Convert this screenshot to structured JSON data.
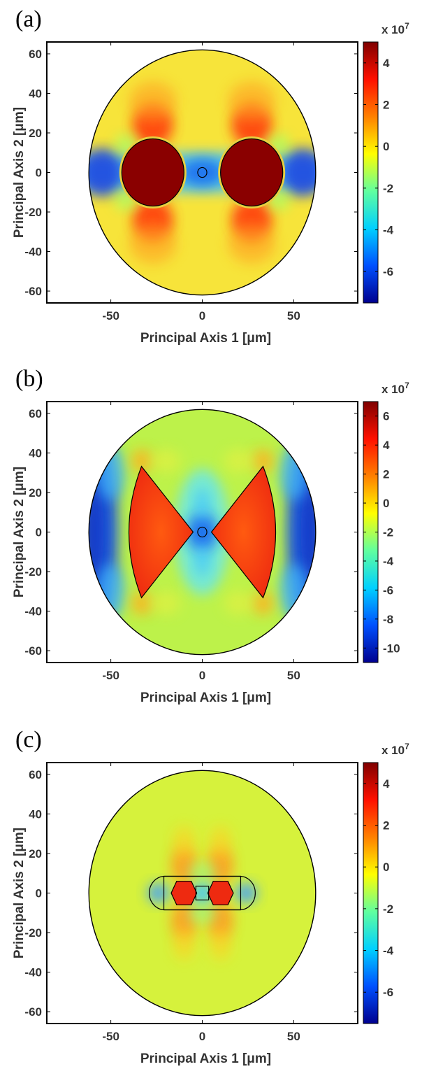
{
  "chart_data": [
    {
      "type": "heatmap",
      "panel_label": "(a)",
      "xlabel": "Principal Axis 1 [μm]",
      "ylabel": "Principal Axis 2 [μm]",
      "xticks": [
        -50,
        0,
        50
      ],
      "yticks": [
        60,
        40,
        20,
        0,
        -20,
        -40,
        -60
      ],
      "xlim": [
        -85,
        85
      ],
      "ylim": [
        -66,
        66
      ],
      "domain_radius": 62,
      "colorbar": {
        "multiplier": "x 10",
        "exponent": "7",
        "range": [
          -7.5,
          5
        ],
        "ticks": [
          4,
          2,
          0,
          -2,
          -4,
          -6
        ],
        "colors": [
          "#00008f",
          "#0050ff",
          "#00d0ff",
          "#60ff9f",
          "#ffff00",
          "#ff8000",
          "#ff1000",
          "#7f0000"
        ]
      },
      "structures": [
        {
          "shape": "circle",
          "cx": -27,
          "cy": 0,
          "r": 17
        },
        {
          "shape": "circle",
          "cx": 27,
          "cy": 0,
          "r": 17
        },
        {
          "shape": "circle",
          "cx": 0,
          "cy": 0,
          "r": 2.5
        }
      ]
    },
    {
      "type": "heatmap",
      "panel_label": "(b)",
      "xlabel": "Principal Axis 1 [μm]",
      "ylabel": "Principal Axis 2 [μm]",
      "xticks": [
        -50,
        0,
        50
      ],
      "yticks": [
        60,
        40,
        20,
        0,
        -20,
        -40,
        -60
      ],
      "xlim": [
        -85,
        85
      ],
      "ylim": [
        -66,
        66
      ],
      "domain_radius": 62,
      "colorbar": {
        "multiplier": "x 10",
        "exponent": "7",
        "range": [
          -11,
          7
        ],
        "ticks": [
          6,
          4,
          2,
          0,
          -2,
          -4,
          -6,
          -8,
          -10
        ],
        "colors": [
          "#00008f",
          "#0050ff",
          "#00d0ff",
          "#60ff9f",
          "#ffff00",
          "#ff8000",
          "#ff1000",
          "#7f0000"
        ]
      },
      "structures": [
        {
          "shape": "sector",
          "direction": "left",
          "apex_gap": 5,
          "radius": 47,
          "half_angle_deg": 45
        },
        {
          "shape": "sector",
          "direction": "right",
          "apex_gap": 5,
          "radius": 47,
          "half_angle_deg": 45
        },
        {
          "shape": "circle",
          "cx": 0,
          "cy": 0,
          "r": 2.5
        }
      ]
    },
    {
      "type": "heatmap",
      "panel_label": "(c)",
      "xlabel": "Principal Axis 1 [μm]",
      "ylabel": "Principal Axis 2 [μm]",
      "xticks": [
        -50,
        0,
        50
      ],
      "yticks": [
        60,
        40,
        20,
        0,
        -20,
        -40,
        -60
      ],
      "xlim": [
        -85,
        85
      ],
      "ylim": [
        -66,
        66
      ],
      "domain_radius": 62,
      "colorbar": {
        "multiplier": "x 10",
        "exponent": "7",
        "range": [
          -7.5,
          5
        ],
        "ticks": [
          4,
          2,
          0,
          -2,
          -4,
          -6
        ],
        "colors": [
          "#00008f",
          "#0050ff",
          "#00d0ff",
          "#60ff9f",
          "#ffff00",
          "#ff8000",
          "#ff1000",
          "#7f0000"
        ]
      },
      "structures": [
        {
          "shape": "stadium",
          "x_min": -29,
          "x_max": 29,
          "half_height": 8.5
        },
        {
          "shape": "rect",
          "x_min": -21,
          "x_max": 21,
          "y_min": -8.5,
          "y_max": 8.5
        },
        {
          "shape": "electrode",
          "x_min": -17,
          "x_max": -3
        },
        {
          "shape": "electrode",
          "x_min": 3,
          "x_max": 17
        },
        {
          "shape": "rect",
          "x_min": -3.5,
          "x_max": 3.5,
          "y_min": -3.5,
          "y_max": 3.5
        }
      ]
    }
  ]
}
